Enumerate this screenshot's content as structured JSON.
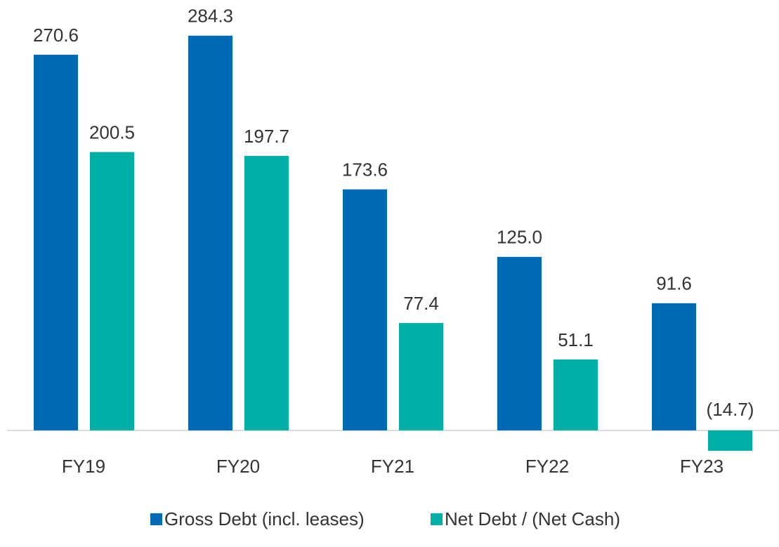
{
  "chart_data": {
    "type": "bar",
    "categories": [
      "FY19",
      "FY20",
      "FY21",
      "FY22",
      "FY23"
    ],
    "series": [
      {
        "name": "Gross Debt (incl. leases)",
        "color": "#006ab7",
        "values": [
          270.6,
          284.3,
          173.6,
          125.0,
          91.6
        ],
        "value_labels": [
          "270.6",
          "284.3",
          "173.6",
          "125.0",
          "91.6"
        ]
      },
      {
        "name": "Net Debt / (Net Cash)",
        "color": "#00b0a6",
        "values": [
          200.5,
          197.7,
          77.4,
          51.1,
          -14.7
        ],
        "value_labels": [
          "200.5",
          "197.7",
          "77.4",
          "51.1",
          "(14.7)"
        ]
      }
    ],
    "ylim": [
      -20,
      310
    ]
  }
}
